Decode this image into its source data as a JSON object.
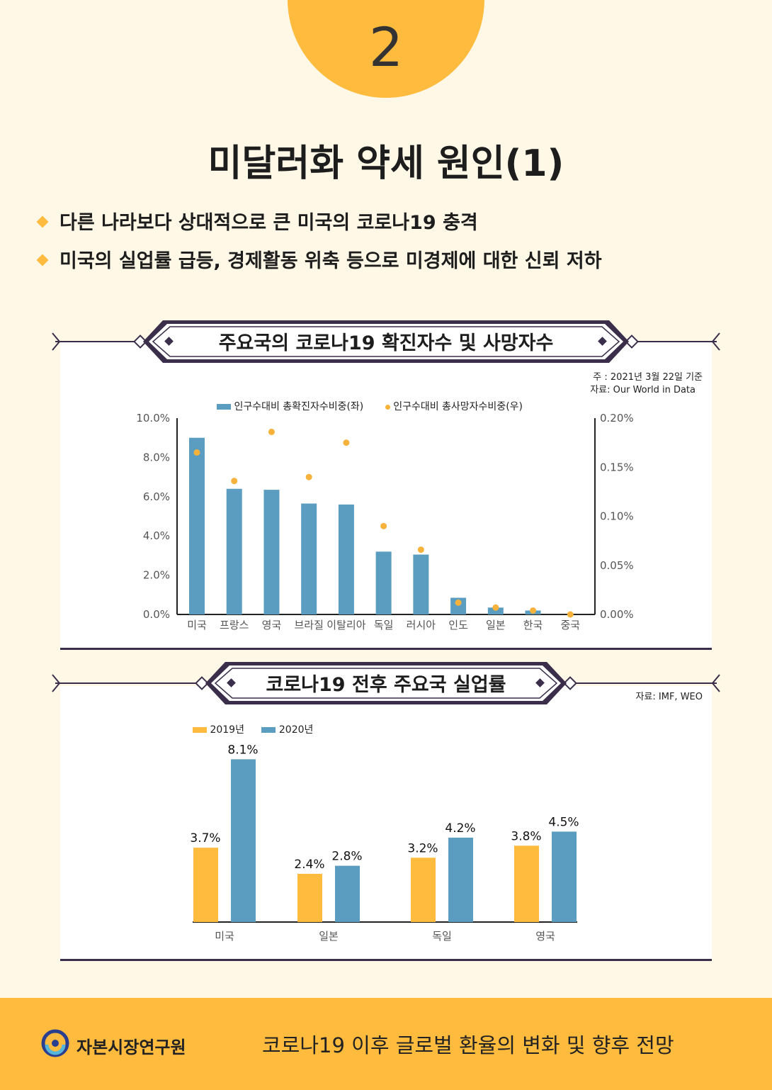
{
  "section_number": "2",
  "title": "미달러화 약세 원인(1)",
  "bullets": [
    "다른 나라보다 상대적으로 큰 미국의 코로나19 충격",
    "미국의 실업률 급등, 경제활동 위축 등으로 미경제에 대한 신뢰 저하"
  ],
  "chart1_banner": "주요국의 코로나19 확진자수 및 사망자수",
  "chart1_note": "주 : 2021년 3월 22일 기준",
  "chart1_source": "자료: Our World in Data",
  "chart2_banner": "코로나19 전후 주요국 실업률",
  "chart2_source": "자료: IMF, WEO",
  "footer": {
    "org": "자본시장연구원",
    "title": "코로나19 이후 글로벌 환율의 변화 및 향후 전망"
  },
  "colors": {
    "accent": "#FFBB3E",
    "blue": "#5B9DC1",
    "dark": "#3A2E4A",
    "background": "#FFF8E6"
  },
  "chart_data": [
    {
      "type": "bar",
      "categories": [
        "미국",
        "프랑스",
        "영국",
        "브라질",
        "이탈리아",
        "독일",
        "러시아",
        "인도",
        "일본",
        "한국",
        "중국"
      ],
      "series": [
        {
          "name": "인구수대비 총확진자수비중(좌)",
          "type": "bar",
          "axis": "left",
          "values": [
            9.0,
            6.4,
            6.35,
            5.65,
            5.6,
            3.2,
            3.05,
            0.85,
            0.35,
            0.2,
            0.0
          ]
        },
        {
          "name": "인구수대비 총사망자수비중(우)",
          "type": "scatter",
          "axis": "right",
          "values": [
            0.165,
            0.136,
            0.186,
            0.14,
            0.175,
            0.09,
            0.066,
            0.012,
            0.007,
            0.004,
            0.0
          ]
        }
      ],
      "left_ticks": [
        "10.0%",
        "8.0%",
        "6.0%",
        "4.0%",
        "2.0%",
        "0.0%"
      ],
      "right_ticks": [
        "0.20%",
        "0.15%",
        "0.10%",
        "0.05%",
        "0.00%"
      ],
      "ylim_left": [
        0,
        10
      ],
      "ylim_right": [
        0,
        0.2
      ],
      "legend": "top"
    },
    {
      "type": "bar",
      "categories": [
        "미국",
        "일본",
        "독일",
        "영국"
      ],
      "series": [
        {
          "name": "2019년",
          "values": [
            3.7,
            2.4,
            3.2,
            3.8
          ],
          "labels": [
            "3.7%",
            "2.4%",
            "3.2%",
            "3.8%"
          ]
        },
        {
          "name": "2020년",
          "values": [
            8.1,
            2.8,
            4.2,
            4.5
          ],
          "labels": [
            "8.1%",
            "2.8%",
            "4.2%",
            "4.5%"
          ]
        }
      ],
      "ylim": [
        0,
        8.5
      ],
      "legend": "top-left"
    }
  ]
}
